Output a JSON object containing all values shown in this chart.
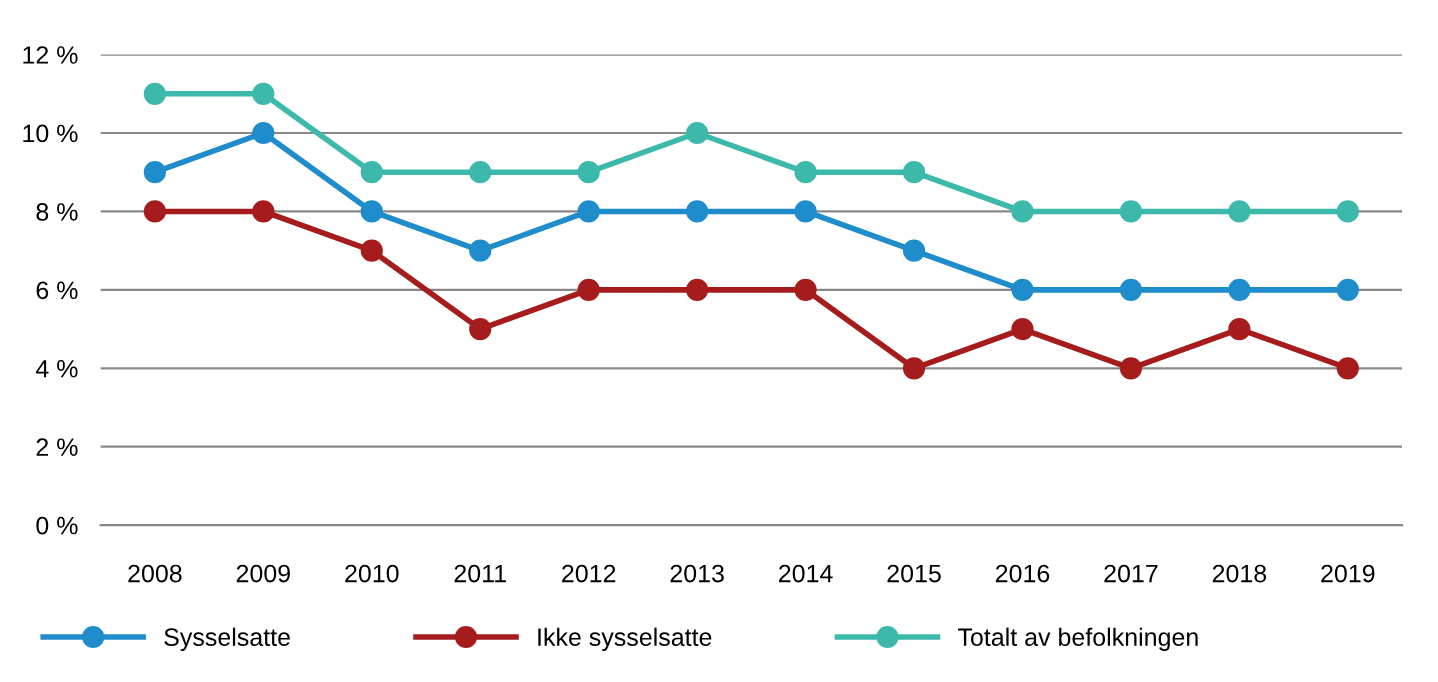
{
  "chart_data": {
    "type": "line",
    "categories": [
      "2008",
      "2009",
      "2010",
      "2011",
      "2012",
      "2013",
      "2014",
      "2015",
      "2016",
      "2017",
      "2018",
      "2019"
    ],
    "series": [
      {
        "name": "Sysselsatte",
        "color": "#1f8dcc",
        "values": [
          9,
          10,
          8,
          7,
          8,
          8,
          8,
          7,
          6,
          6,
          6,
          6
        ]
      },
      {
        "name": "Ikke sysselsatte",
        "color": "#a61c1c",
        "values": [
          8,
          8,
          7,
          5,
          6,
          6,
          6,
          4,
          5,
          4,
          5,
          4
        ]
      },
      {
        "name": "Totalt av befolkningen",
        "color": "#3cb9aa",
        "values": [
          11,
          11,
          9,
          9,
          9,
          10,
          9,
          9,
          8,
          8,
          8,
          8
        ]
      }
    ],
    "ylim": [
      0,
      12
    ],
    "yticks": [
      {
        "value": 0,
        "label": "0 %"
      },
      {
        "value": 2,
        "label": "2 %"
      },
      {
        "value": 4,
        "label": "4 %"
      },
      {
        "value": 6,
        "label": "6 %"
      },
      {
        "value": 8,
        "label": "8 %"
      },
      {
        "value": 10,
        "label": "10 %"
      },
      {
        "value": 12,
        "label": "12 %"
      }
    ],
    "grid": "y",
    "legend": "bottom",
    "marker": "circle",
    "line_style": "solid"
  }
}
